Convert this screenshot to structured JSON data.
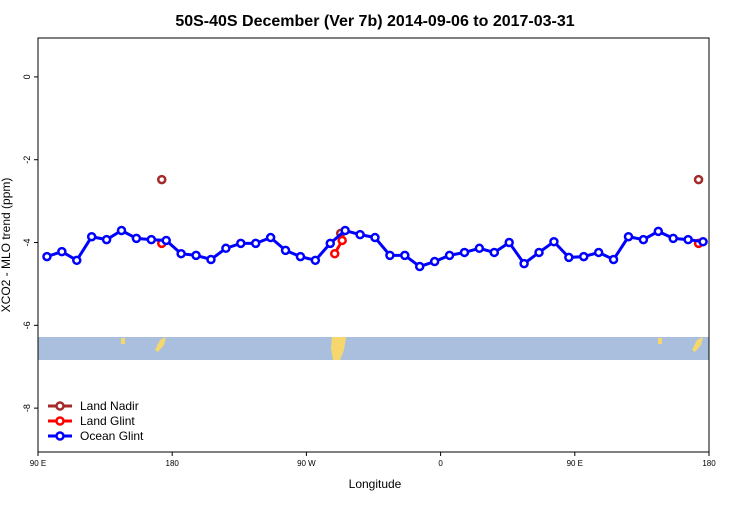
{
  "chart_data": {
    "type": "line",
    "title": "50S-40S December (Ver 7b)   2014-09-06 to 2017-03-31",
    "x_label": "Longitude",
    "y_label": "XCO2 - MLO trend (ppm)",
    "xlim": [
      90,
      540
    ],
    "xticks": [
      {
        "value": 90,
        "label": "90 E"
      },
      {
        "value": 180,
        "label": "180"
      },
      {
        "value": 270,
        "label": "90 W"
      },
      {
        "value": 360,
        "label": "0"
      },
      {
        "value": 450,
        "label": "90 E"
      },
      {
        "value": 540,
        "label": "180"
      }
    ],
    "ylim": [
      -9.06,
      0.94
    ],
    "yticks": [
      0,
      -2,
      -4,
      -6,
      -8
    ],
    "legend_position": "bottom left",
    "series": [
      {
        "name": "Land Nadir",
        "color": "#a52a2a",
        "x": [
          173,
          293,
          533
        ],
        "values": [
          -2.48,
          -3.78,
          -2.48
        ]
      },
      {
        "name": "Land Glint",
        "color": "#ff0000",
        "x": [
          173,
          289,
          294,
          533
        ],
        "values": [
          -4.02,
          -4.27,
          -3.95,
          -4.02
        ]
      },
      {
        "name": "Ocean Glint",
        "color": "#0000ff",
        "x": [
          96,
          106,
          116,
          126,
          136,
          146,
          156,
          166,
          176,
          186,
          196,
          206,
          216,
          226,
          236,
          246,
          256,
          266,
          276,
          286,
          296,
          306,
          316,
          326,
          336,
          346,
          356,
          366,
          376,
          386,
          396,
          406,
          416,
          426,
          436,
          446,
          456,
          466,
          476,
          486,
          496,
          506,
          516,
          526,
          536
        ],
        "values": [
          -4.34,
          -4.22,
          -4.43,
          -3.86,
          -3.93,
          -3.71,
          -3.9,
          -3.93,
          -3.95,
          -4.27,
          -4.31,
          -4.41,
          -4.14,
          -4.02,
          -4.02,
          -3.88,
          -4.19,
          -4.34,
          -4.43,
          -4.02,
          -3.71,
          -3.81,
          -3.88,
          -4.31,
          -4.31,
          -4.58,
          -4.46,
          -4.31,
          -4.24,
          -4.14,
          -4.24,
          -4.0,
          -4.51,
          -4.24,
          -3.98,
          -4.36,
          -4.34,
          -4.24,
          -4.41,
          -3.86,
          -3.93,
          -3.73,
          -3.9,
          -3.93,
          -3.98
        ]
      }
    ]
  }
}
